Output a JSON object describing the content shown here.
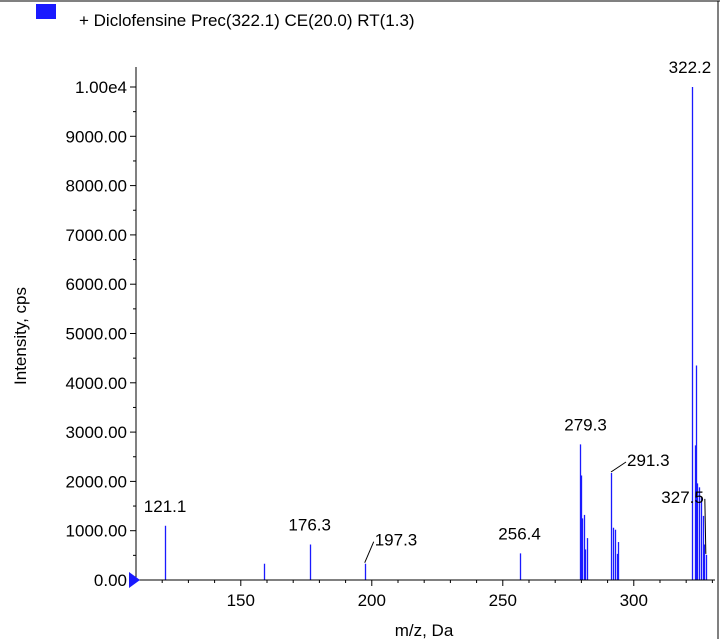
{
  "chart_data": {
    "type": "bar",
    "legend": {
      "label": "+ Diclofensine Prec(322.1) CE(20.0) RT(1.3)",
      "color": "#1a1aff",
      "placement": "top-left"
    },
    "xlabel": "m/z, Da",
    "ylabel": "Intensity, cps",
    "xlim": [
      110,
      331
    ],
    "ylim": [
      0,
      10000
    ],
    "x_ticks": [
      {
        "value": 150,
        "label": "150"
      },
      {
        "value": 200,
        "label": "200"
      },
      {
        "value": 250,
        "label": "250"
      },
      {
        "value": 300,
        "label": "300"
      }
    ],
    "y_ticks": [
      {
        "value": 0,
        "label": "0.00"
      },
      {
        "value": 1000,
        "label": "1000.00"
      },
      {
        "value": 2000,
        "label": "2000.00"
      },
      {
        "value": 3000,
        "label": "3000.00"
      },
      {
        "value": 4000,
        "label": "4000.00"
      },
      {
        "value": 5000,
        "label": "5000.00"
      },
      {
        "value": 6000,
        "label": "6000.00"
      },
      {
        "value": 7000,
        "label": "7000.00"
      },
      {
        "value": 8000,
        "label": "8000.00"
      },
      {
        "value": 9000,
        "label": "9000.00"
      },
      {
        "value": 10000,
        "label": "1.00e4"
      }
    ],
    "bar_color": "#1a1aff",
    "peaks": [
      {
        "mz": 121.1,
        "intensity": 1100
      },
      {
        "mz": 159.0,
        "intensity": 330
      },
      {
        "mz": 176.3,
        "intensity": 720
      },
      {
        "mz": 197.3,
        "intensity": 330
      },
      {
        "mz": 256.4,
        "intensity": 540
      },
      {
        "mz": 279.3,
        "intensity": 2750
      },
      {
        "mz": 279.7,
        "intensity": 2120
      },
      {
        "mz": 280.4,
        "intensity": 1250
      },
      {
        "mz": 281.0,
        "intensity": 1320
      },
      {
        "mz": 281.4,
        "intensity": 620
      },
      {
        "mz": 282.0,
        "intensity": 850
      },
      {
        "mz": 291.3,
        "intensity": 2170
      },
      {
        "mz": 292.1,
        "intensity": 1060
      },
      {
        "mz": 292.8,
        "intensity": 1020
      },
      {
        "mz": 293.5,
        "intensity": 530
      },
      {
        "mz": 294.1,
        "intensity": 770
      },
      {
        "mz": 322.2,
        "intensity": 10000
      },
      {
        "mz": 323.3,
        "intensity": 2730
      },
      {
        "mz": 323.8,
        "intensity": 4350
      },
      {
        "mz": 324.3,
        "intensity": 1960
      },
      {
        "mz": 325.0,
        "intensity": 1880
      },
      {
        "mz": 325.7,
        "intensity": 1680
      },
      {
        "mz": 326.3,
        "intensity": 1300
      },
      {
        "mz": 326.9,
        "intensity": 720
      },
      {
        "mz": 327.5,
        "intensity": 510
      }
    ],
    "peak_labels": [
      {
        "text": "121.1",
        "mz": 121.1,
        "intensity": 1100
      },
      {
        "text": "176.3",
        "mz": 176.3,
        "intensity": 720
      },
      {
        "text": "197.3",
        "mz": 197.3,
        "intensity": 330
      },
      {
        "text": "256.4",
        "mz": 256.4,
        "intensity": 540
      },
      {
        "text": "279.3",
        "mz": 279.3,
        "intensity": 2750
      },
      {
        "text": "291.3",
        "mz": 291.3,
        "intensity": 2170
      },
      {
        "text": "322.2",
        "mz": 322.2,
        "intensity": 10000
      },
      {
        "text": "327.5",
        "mz": 327.5,
        "intensity": 510
      }
    ]
  }
}
